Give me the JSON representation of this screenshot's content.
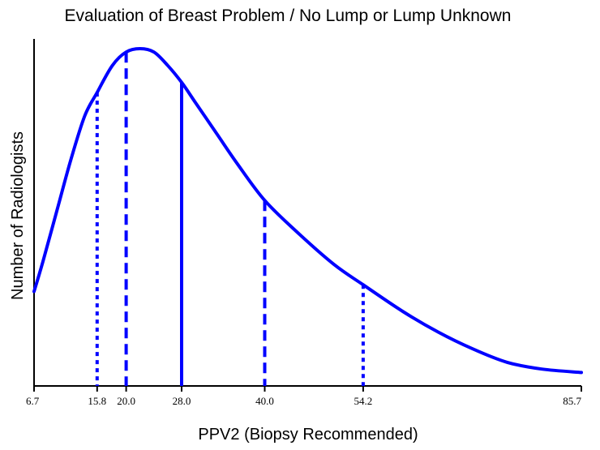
{
  "chart_data": {
    "type": "line",
    "title": "Evaluation of Breast Problem / No Lump or Lump Unknown",
    "xlabel": "PPV2 (Biopsy Recommended)",
    "ylabel": "Number of Radiologists",
    "xlim": [
      6.7,
      85.7
    ],
    "ylim": [
      0,
      1
    ],
    "grid": false,
    "legend": "none",
    "x_ticks": [
      "6.7",
      "15.8",
      "20.0",
      "28.0",
      "40.0",
      "54.2",
      "85.7"
    ],
    "curve": {
      "x": [
        6.7,
        8.0,
        10.0,
        12.0,
        14.0,
        15.8,
        18.0,
        20.0,
        22.0,
        24.0,
        26.0,
        28.0,
        30.0,
        33.0,
        36.0,
        40.0,
        45.0,
        50.0,
        54.2,
        60.0,
        65.0,
        70.0,
        75.0,
        80.0,
        85.7
      ],
      "y": [
        0.28,
        0.37,
        0.52,
        0.67,
        0.8,
        0.87,
        0.95,
        0.99,
        1.0,
        0.99,
        0.95,
        0.9,
        0.84,
        0.75,
        0.66,
        0.55,
        0.45,
        0.36,
        0.3,
        0.22,
        0.16,
        0.11,
        0.07,
        0.05,
        0.04
      ]
    },
    "reference_lines": [
      {
        "x": 15.8,
        "style": "dotted"
      },
      {
        "x": 20.0,
        "style": "dashed"
      },
      {
        "x": 28.0,
        "style": "solid"
      },
      {
        "x": 40.0,
        "style": "dashed"
      },
      {
        "x": 54.2,
        "style": "dotted"
      }
    ],
    "color": "#0000ff"
  }
}
